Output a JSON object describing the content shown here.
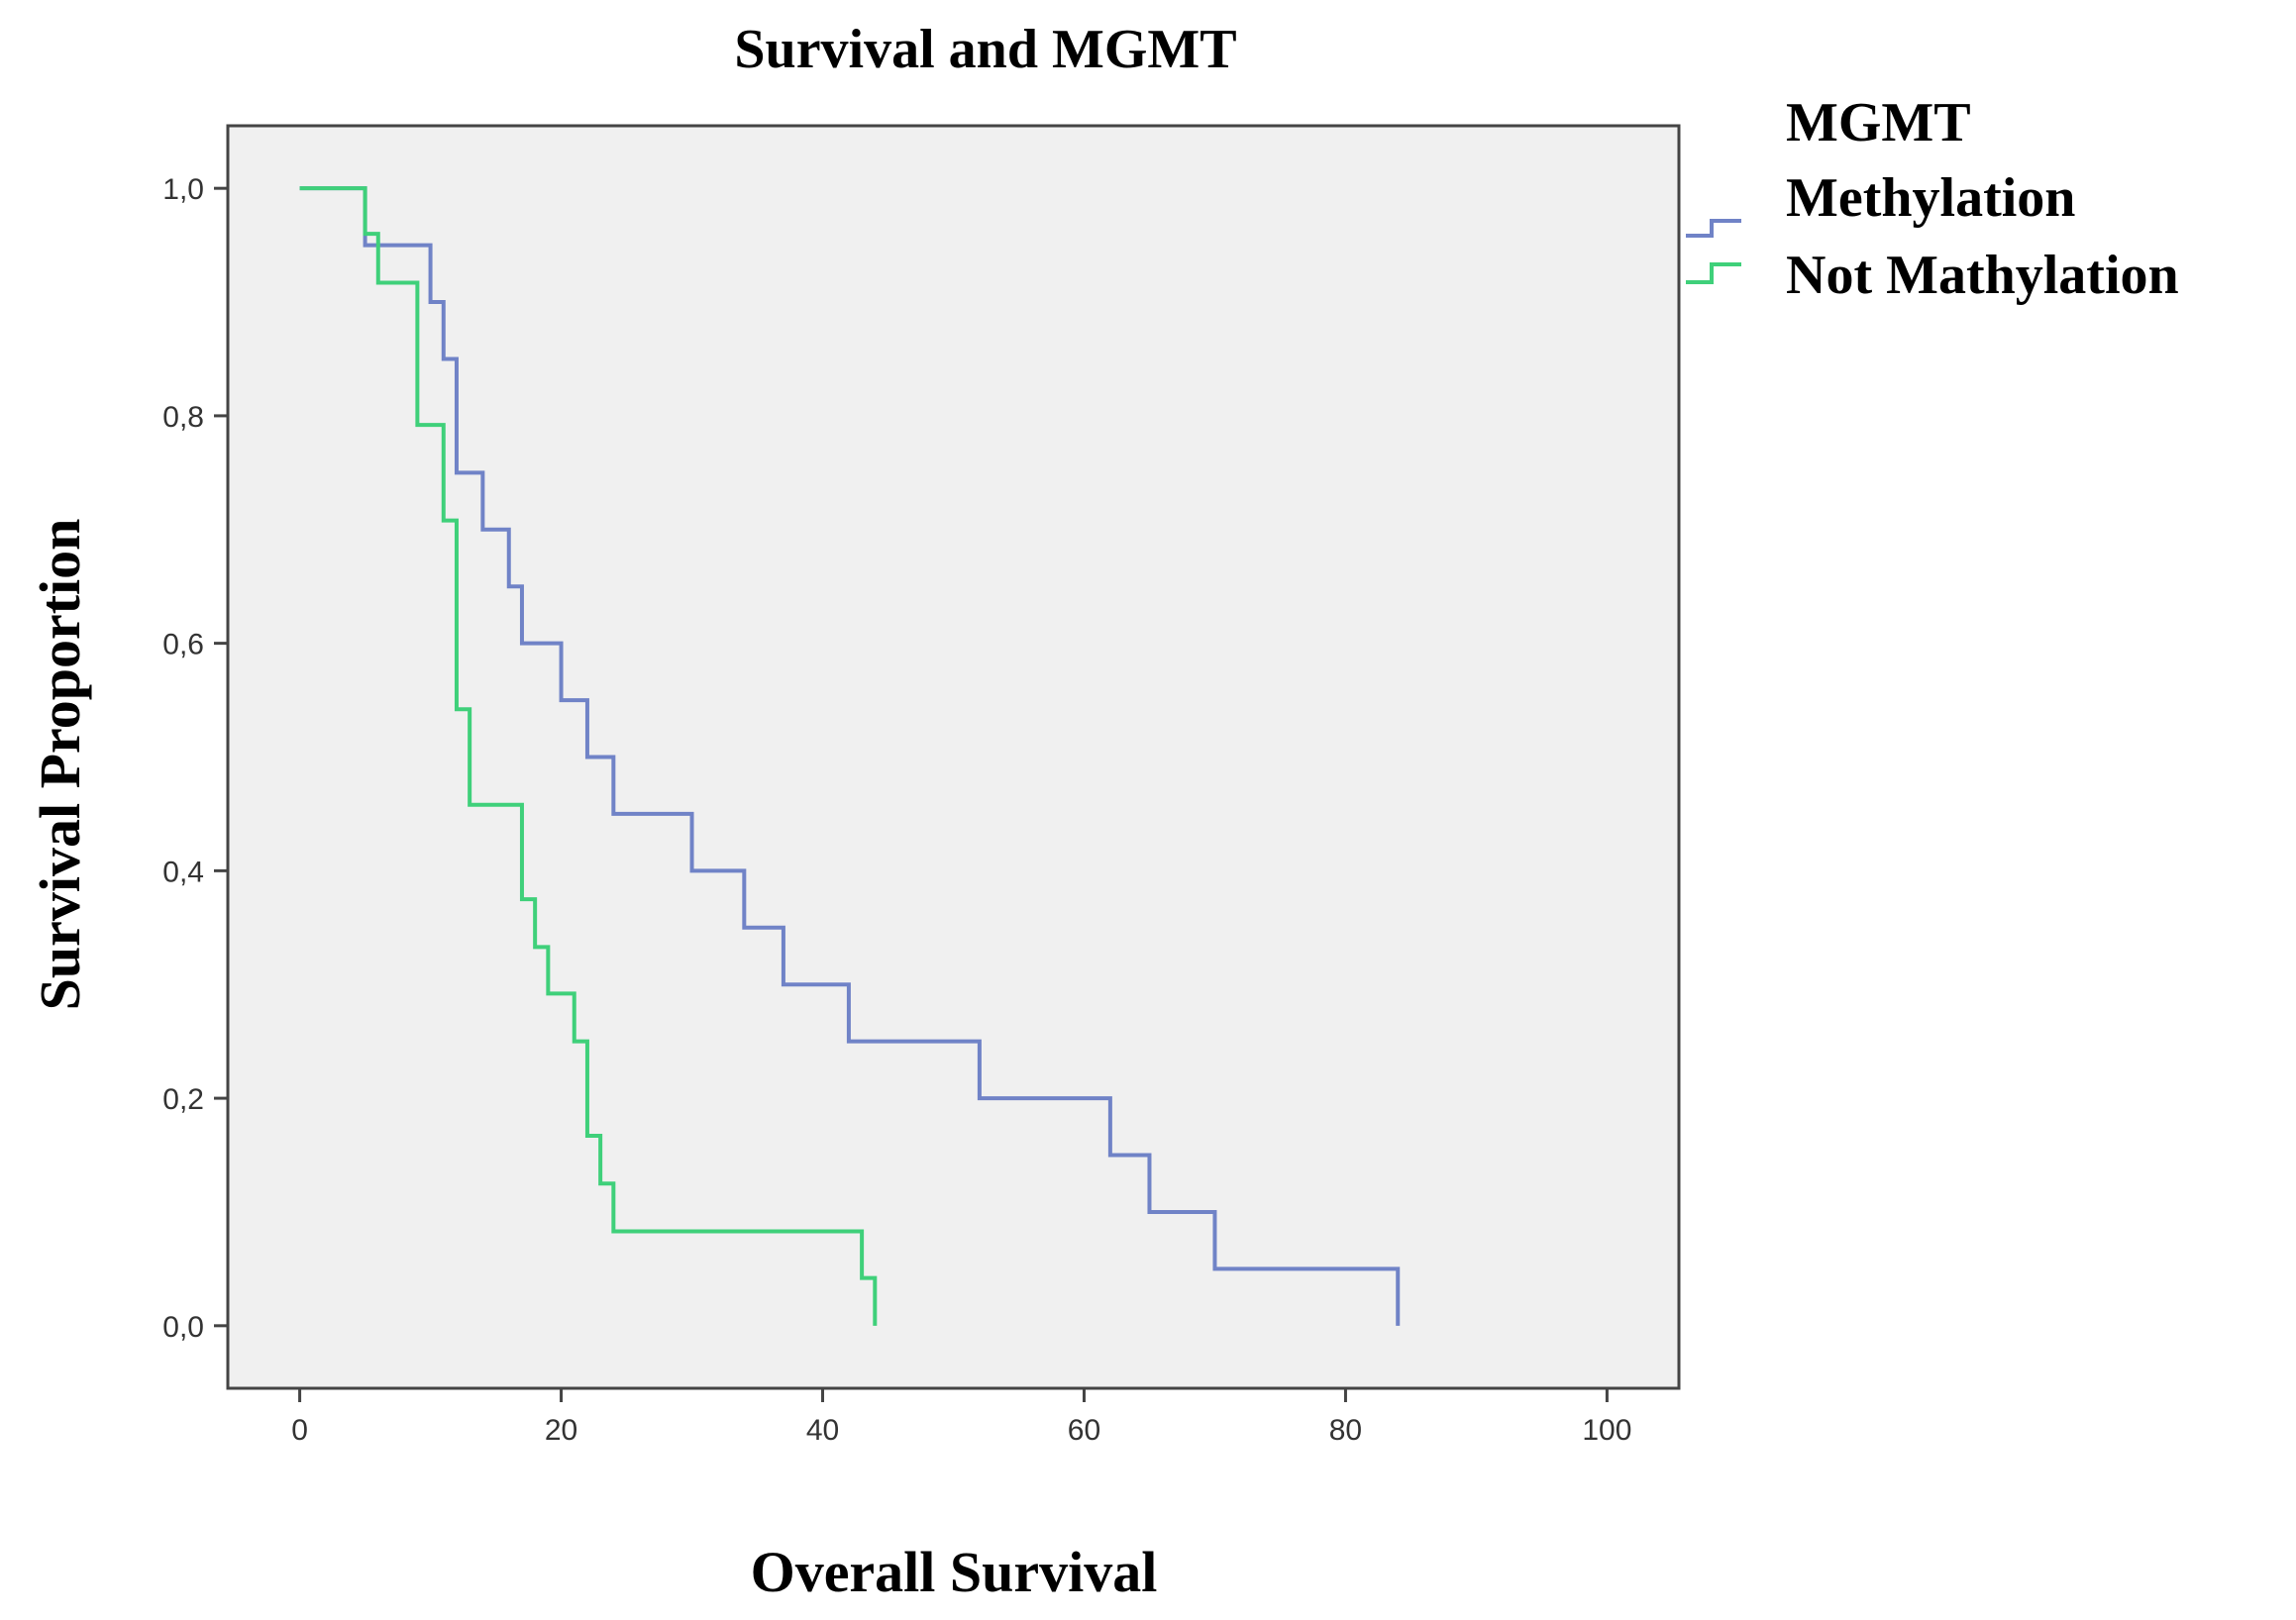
{
  "chart_data": {
    "type": "line",
    "subtype": "kaplan-meier step",
    "title": "Survival and MGMT",
    "xlabel": "Overall Survival",
    "ylabel": "Survival Proportion",
    "xlim": [
      -5.5,
      105.5
    ],
    "ylim": [
      -0.055,
      1.055
    ],
    "x_ticks": [
      0,
      20,
      40,
      60,
      80,
      100
    ],
    "x_tick_labels": [
      "0",
      "20",
      "40",
      "60",
      "80",
      "100"
    ],
    "y_ticks": [
      0.0,
      0.2,
      0.4,
      0.6,
      0.8,
      1.0
    ],
    "y_tick_labels": [
      "0,0",
      "0,2",
      "0,4",
      "0,6",
      "0,8",
      "1,0"
    ],
    "grid": false,
    "plot_background": "#f0f0f0",
    "legend": {
      "title": "MGMT",
      "position": "right"
    },
    "series": [
      {
        "name": "Methylation",
        "color": "#7083c7",
        "steps": [
          [
            0,
            1.0
          ],
          [
            5,
            0.95
          ],
          [
            10,
            0.9
          ],
          [
            11,
            0.85
          ],
          [
            12,
            0.75
          ],
          [
            14,
            0.7
          ],
          [
            16,
            0.65
          ],
          [
            17,
            0.6
          ],
          [
            20,
            0.55
          ],
          [
            22,
            0.5
          ],
          [
            24,
            0.45
          ],
          [
            30,
            0.4
          ],
          [
            34,
            0.35
          ],
          [
            37,
            0.3
          ],
          [
            42,
            0.25
          ],
          [
            52,
            0.2
          ],
          [
            62,
            0.15
          ],
          [
            65,
            0.1
          ],
          [
            70,
            0.05
          ],
          [
            84,
            0.0
          ]
        ]
      },
      {
        "name": "Not Mathylation",
        "color": "#3fd07a",
        "steps": [
          [
            0,
            1.0
          ],
          [
            5,
            0.96
          ],
          [
            6,
            0.917
          ],
          [
            9,
            0.792
          ],
          [
            11,
            0.708
          ],
          [
            12,
            0.542
          ],
          [
            13,
            0.458
          ],
          [
            17,
            0.375
          ],
          [
            18,
            0.333
          ],
          [
            19,
            0.292
          ],
          [
            21,
            0.25
          ],
          [
            22,
            0.167
          ],
          [
            23,
            0.125
          ],
          [
            24,
            0.083
          ],
          [
            43,
            0.042
          ],
          [
            44,
            0.0
          ]
        ]
      }
    ]
  }
}
